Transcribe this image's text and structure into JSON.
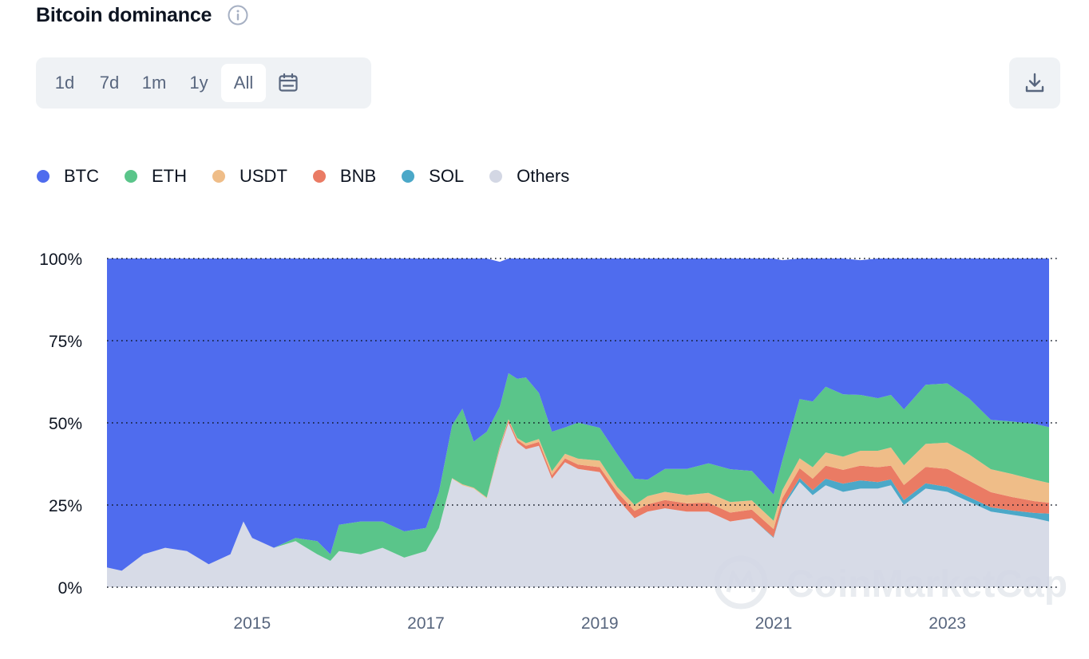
{
  "header": {
    "title": "Bitcoin dominance",
    "info_icon": "info-icon"
  },
  "range_selector": {
    "options": [
      "1d",
      "7d",
      "1m",
      "1y",
      "All"
    ],
    "selected": "All",
    "calendar_icon": "calendar-icon"
  },
  "download": {
    "icon": "download-icon"
  },
  "watermark": "CoinMarketCap",
  "colors": {
    "BTC": "#4f6cee",
    "ETH": "#5ac58a",
    "USDT": "#efbd88",
    "BNB": "#ea7b64",
    "SOL": "#4ba8c8",
    "Others": "#d3d7e4"
  },
  "chart_data": {
    "type": "area",
    "stacked": true,
    "normalized_percent": true,
    "title": "Bitcoin dominance",
    "xlabel": "",
    "ylabel": "",
    "ylim": [
      0,
      100
    ],
    "xlim": [
      2013.33,
      2024.17
    ],
    "y_ticks": [
      "0%",
      "25%",
      "50%",
      "75%",
      "100%"
    ],
    "x_ticks": [
      "2015",
      "2017",
      "2019",
      "2021",
      "2023"
    ],
    "grid": "horizontal dotted",
    "legend_position": "top-left",
    "x": [
      2013.33,
      2013.5,
      2013.75,
      2014.0,
      2014.25,
      2014.5,
      2014.75,
      2014.9,
      2015.0,
      2015.25,
      2015.5,
      2015.75,
      2015.9,
      2016.0,
      2016.25,
      2016.5,
      2016.75,
      2017.0,
      2017.15,
      2017.3,
      2017.42,
      2017.55,
      2017.7,
      2017.85,
      2017.95,
      2018.05,
      2018.15,
      2018.3,
      2018.45,
      2018.6,
      2018.75,
      2019.0,
      2019.2,
      2019.4,
      2019.55,
      2019.75,
      2020.0,
      2020.25,
      2020.5,
      2020.75,
      2021.0,
      2021.1,
      2021.3,
      2021.45,
      2021.6,
      2021.8,
      2022.0,
      2022.2,
      2022.35,
      2022.5,
      2022.75,
      2023.0,
      2023.25,
      2023.5,
      2023.75,
      2024.0,
      2024.17
    ],
    "series": [
      {
        "name": "Others",
        "values": [
          6,
          5,
          10,
          12,
          11,
          7,
          10,
          20,
          15,
          12,
          14,
          10,
          8,
          11,
          10,
          12,
          9,
          11,
          18,
          33,
          31,
          30,
          27,
          42,
          50,
          44,
          42,
          43,
          33,
          38,
          36,
          35,
          27,
          21,
          23,
          24,
          23,
          23,
          20,
          21,
          15,
          24,
          32,
          28,
          31,
          29,
          30,
          30,
          31,
          25,
          30,
          29,
          26,
          23,
          22,
          21,
          20
        ]
      },
      {
        "name": "SOL",
        "values": [
          0,
          0,
          0,
          0,
          0,
          0,
          0,
          0,
          0,
          0,
          0,
          0,
          0,
          0,
          0,
          0,
          0,
          0,
          0,
          0,
          0,
          0,
          0,
          0,
          0,
          0,
          0,
          0,
          0,
          0,
          0,
          0,
          0,
          0,
          0,
          0,
          0,
          0,
          0,
          0,
          0.2,
          0.5,
          1.2,
          1.5,
          2,
          2.5,
          2.5,
          2,
          1.8,
          1.5,
          1.6,
          1.5,
          1.4,
          1.3,
          1.3,
          1.6,
          2.4
        ]
      },
      {
        "name": "BNB",
        "values": [
          0,
          0,
          0,
          0,
          0,
          0,
          0,
          0,
          0,
          0,
          0,
          0,
          0,
          0,
          0,
          0,
          0,
          0,
          0,
          0,
          0,
          0,
          0,
          0.5,
          0.8,
          0.9,
          1,
          1.2,
          1.1,
          1.2,
          1.3,
          1.5,
          2,
          2.2,
          2.2,
          2.5,
          2.5,
          2.7,
          2.7,
          2.6,
          2.5,
          2.5,
          3,
          3.5,
          4,
          4.2,
          4.5,
          4.5,
          4.2,
          4.6,
          5,
          5.5,
          5,
          4.6,
          4.1,
          3.6,
          3.3
        ]
      },
      {
        "name": "USDT",
        "values": [
          0,
          0,
          0,
          0,
          0,
          0,
          0,
          0,
          0,
          0,
          0,
          0,
          0,
          0,
          0,
          0,
          0,
          0,
          0,
          0.2,
          0.3,
          0.3,
          0.3,
          0.4,
          0.3,
          0.5,
          0.8,
          0.9,
          1.2,
          1.4,
          1.8,
          2,
          1.5,
          1.8,
          2.5,
          2.5,
          2.5,
          3,
          3.2,
          2.8,
          2.5,
          2.5,
          3,
          3.5,
          4,
          4,
          4.5,
          5,
          5.5,
          6,
          7,
          8,
          8,
          7,
          7,
          6.5,
          6
        ]
      },
      {
        "name": "ETH",
        "values": [
          0,
          0,
          0,
          0,
          0,
          0,
          0,
          0,
          0,
          0,
          1,
          4,
          2,
          8,
          10,
          8,
          8,
          7,
          11,
          16,
          23,
          14,
          20,
          12,
          14,
          18,
          20,
          14,
          12,
          8,
          11,
          10,
          10,
          8,
          5,
          7,
          8,
          9,
          10,
          9,
          8,
          9,
          18,
          20,
          20,
          19,
          17,
          16,
          16,
          17,
          18,
          18,
          17,
          15,
          16,
          17,
          17
        ]
      },
      {
        "name": "BTC",
        "values": [
          94,
          95,
          90,
          88,
          89,
          93,
          90,
          80,
          85,
          88,
          85,
          86,
          90,
          81,
          80,
          80,
          83,
          82,
          71,
          50.8,
          45.7,
          55.7,
          52.7,
          44.1,
          34.9,
          36.6,
          36.2,
          40.9,
          52.7,
          51.4,
          49.9,
          51.5,
          59.5,
          67,
          67.3,
          64,
          64,
          62.3,
          64.1,
          64.6,
          71.8,
          61,
          43.8,
          43.5,
          39,
          41.3,
          41,
          42.5,
          41.5,
          46.9,
          38.4,
          38,
          42.6,
          49.1,
          49.6,
          50.3,
          51.3
        ]
      }
    ]
  }
}
